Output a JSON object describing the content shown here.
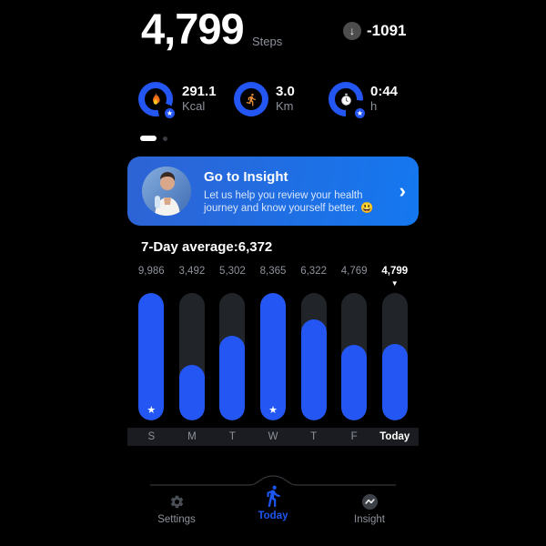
{
  "colors": {
    "accent": "#2356f2",
    "banner_from": "#2e63d4",
    "banner_to": "#1478f0",
    "bar_track": "#212429",
    "bg": "#000000",
    "muted_text": "#8d929b"
  },
  "icons": {
    "star": "★",
    "down_arrow": "↓",
    "chevron": "›",
    "triangle": "▼"
  },
  "header": {
    "steps_value": "4,799",
    "steps_label": "Steps",
    "change_value": "-1091"
  },
  "metrics": [
    {
      "value": "291.1",
      "unit": "Kcal",
      "icon": "flame-icon",
      "starred": true
    },
    {
      "value": "3.0",
      "unit": "Km",
      "icon": "runner-icon",
      "starred": false
    },
    {
      "value": "0:44",
      "unit": "h",
      "icon": "stopwatch-icon",
      "starred": true
    }
  ],
  "pager": {
    "dot_count": 2,
    "active_index": 0
  },
  "insight_banner": {
    "title": "Go to Insight",
    "subtitle": "Let us help you review your health journey and know yourself better. 😃"
  },
  "average_label": "7-Day average:6,372",
  "chart_data": {
    "type": "bar",
    "title": "7-Day average:6,372",
    "categories": [
      "S",
      "M",
      "T",
      "W",
      "T",
      "F",
      "Today"
    ],
    "values": [
      9986,
      3492,
      5302,
      8365,
      6322,
      4769,
      4799
    ],
    "value_labels": [
      "9,986",
      "3,492",
      "5,302",
      "8,365",
      "6,322",
      "4,769",
      "4,799"
    ],
    "starred": [
      true,
      false,
      false,
      true,
      false,
      false,
      false
    ],
    "selected_index": 6,
    "goal": 8000,
    "ylim": [
      0,
      10000
    ],
    "legend": "none",
    "grid": false
  },
  "bottom_nav": {
    "items": [
      {
        "label": "Settings",
        "icon": "gear-icon",
        "active": false
      },
      {
        "label": "Today",
        "icon": "walking-person-icon",
        "active": true
      },
      {
        "label": "Insight",
        "icon": "pulse-icon",
        "active": false
      }
    ]
  }
}
